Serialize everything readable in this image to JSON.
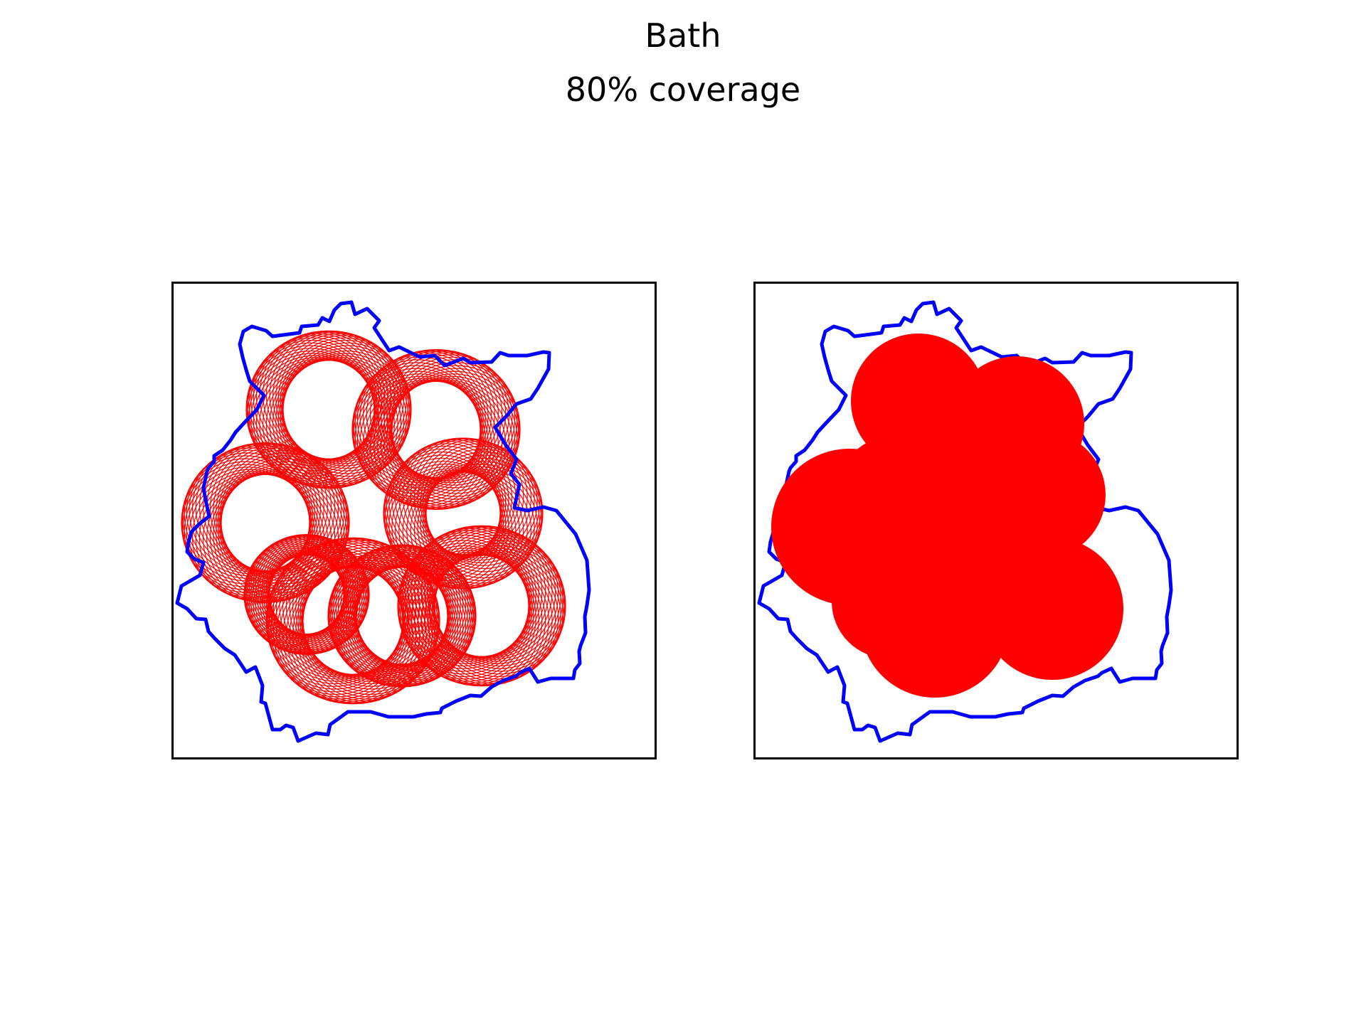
{
  "figure": {
    "title": "Bath",
    "subtitle": "80% coverage"
  },
  "colors": {
    "boundary": "#0000ff",
    "coverage": "#ff0000",
    "frame": "#000000",
    "background": "#ffffff"
  },
  "chart_data": [
    {
      "type": "map",
      "panel": "left",
      "style": "outline-circles",
      "region_outline": "Bath boundary",
      "coverage_percent": 80,
      "grid": false
    },
    {
      "type": "map",
      "panel": "right",
      "style": "filled-union",
      "region_outline": "Bath boundary",
      "coverage_percent": 80,
      "grid": false
    }
  ]
}
